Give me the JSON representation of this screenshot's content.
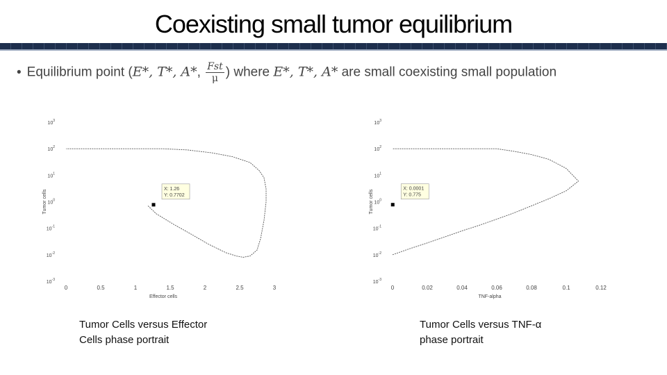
{
  "slide": {
    "title": "Coexisting small tumor equilibrium",
    "bullet": {
      "marker": "•",
      "lead": "Equilibrium point (",
      "vars": "E*, T*, A*",
      "frac_num": "Fst",
      "frac_den": "μ",
      "close": ")",
      "mid": "where",
      "vars2": "E*, T*, A*",
      "tail": "are small coexisting small population"
    },
    "captions": [
      {
        "line1": "Tumor Cells versus Effector",
        "line2": "Cells phase portrait"
      },
      {
        "line1": "Tumor Cells versus TNF-α",
        "line2": "phase portrait"
      }
    ],
    "colors": {
      "title_rule": "#1e2f4d",
      "curve": "#555555",
      "marker": "#000000",
      "datatip_bg": "#ffffe1"
    }
  },
  "chart_data": [
    {
      "type": "line",
      "title": "",
      "xlabel": "Effector cells",
      "ylabel": "Tumor cells",
      "xscale": "linear",
      "yscale": "log",
      "xlim": [
        0,
        3
      ],
      "ylim": [
        0.001,
        1000
      ],
      "xticks": [
        "0",
        "0.5",
        "1",
        "1.5",
        "2",
        "2.5",
        "3"
      ],
      "yticks": [
        "10-3",
        "10-2",
        "10-1",
        "100",
        "101",
        "102",
        "103"
      ],
      "grid": false,
      "series": [
        {
          "x": [
            1.18,
            1.3,
            1.55,
            1.8,
            2.05,
            2.3,
            2.45,
            2.55,
            2.65,
            2.75,
            2.8,
            2.85,
            2.88,
            2.88,
            2.85,
            2.78,
            2.65,
            2.4,
            2.1,
            1.75,
            1.4,
            1.2,
            1.05,
            0.5,
            0.0
          ],
          "y": [
            0.7,
            0.35,
            0.14,
            0.06,
            0.025,
            0.012,
            0.009,
            0.008,
            0.009,
            0.015,
            0.04,
            0.2,
            1.0,
            3.0,
            8.0,
            15.0,
            30.0,
            50.0,
            70.0,
            90.0,
            100.0,
            100.0,
            100.0,
            100.0,
            100.0
          ]
        }
      ],
      "marker_point": {
        "x": 1.26,
        "y": 0.7702
      },
      "datatip": {
        "x_label": "X: 1.26",
        "y_label": "Y: 0.7702"
      }
    },
    {
      "type": "line",
      "title": "",
      "xlabel": "TNF-alpha",
      "ylabel": "Tumor cells",
      "xscale": "linear",
      "yscale": "log",
      "xlim": [
        0,
        0.12
      ],
      "ylim": [
        0.001,
        1000
      ],
      "xticks": [
        "0",
        "0.02",
        "0.04",
        "0.06",
        "0.08",
        "0.1",
        "0.12"
      ],
      "yticks": [
        "10-3",
        "10-2",
        "10-1",
        "100",
        "101",
        "102",
        "103"
      ],
      "grid": false,
      "series": [
        {
          "x": [
            0.0,
            0.01,
            0.02,
            0.03,
            0.04,
            0.05,
            0.06,
            0.07,
            0.08,
            0.09,
            0.1,
            0.107,
            0.1,
            0.09,
            0.08,
            0.07,
            0.06,
            0.05,
            0.04,
            0.03,
            0.02,
            0.01,
            0.0
          ],
          "y": [
            0.01,
            0.017,
            0.028,
            0.047,
            0.08,
            0.13,
            0.22,
            0.38,
            0.7,
            1.3,
            2.6,
            6.0,
            18.0,
            40.0,
            60.0,
            80.0,
            100.0,
            100.0,
            100.0,
            100.0,
            100.0,
            100.0,
            100.0
          ]
        }
      ],
      "marker_point": {
        "x": 0.0001,
        "y": 0.775
      },
      "datatip": {
        "x_label": "X: 0.0001",
        "y_label": "Y: 0.775"
      }
    }
  ]
}
